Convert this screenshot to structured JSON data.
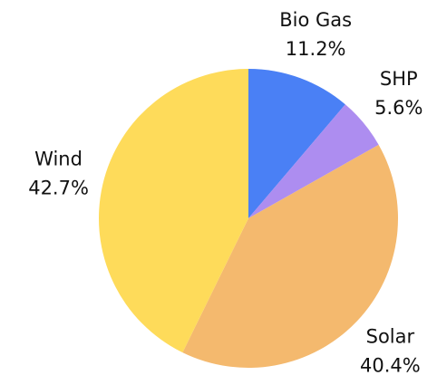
{
  "chart_data": {
    "type": "pie",
    "categories": [
      "Bio Gas",
      "SHP",
      "Solar",
      "Wind"
    ],
    "values": [
      11.2,
      5.6,
      40.4,
      42.7
    ],
    "value_labels": [
      "11.2%",
      "5.6%",
      "40.4%",
      "42.7%"
    ],
    "colors": [
      "#4a80f5",
      "#ad8df0",
      "#f4b96e",
      "#fedb5a"
    ]
  }
}
